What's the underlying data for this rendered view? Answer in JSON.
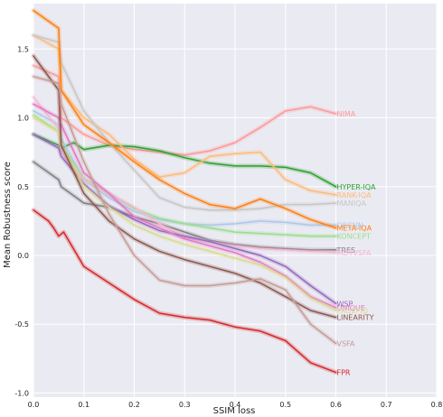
{
  "chart_data": {
    "type": "line",
    "xlabel": "SSIM loss",
    "ylabel": "Mean Robustness score",
    "xlim": [
      0.0,
      0.8
    ],
    "ylim": [
      -1.03,
      1.83
    ],
    "xticks": [
      0.0,
      0.1,
      0.2,
      0.3,
      0.4,
      0.5,
      0.6,
      0.7,
      0.8
    ],
    "xtick_labels": [
      "0.0",
      "0.1",
      "0.2",
      "0.3",
      "0.4",
      "0.5",
      "0.6",
      "0.7",
      "0.8"
    ],
    "yticks": [
      1.5,
      1.0,
      0.5,
      0.0,
      -0.5,
      -1.0
    ],
    "ytick_labels": [
      "1.5",
      "1.0",
      "0.5",
      "0.0",
      "-0.5",
      "-1.0"
    ],
    "grid": true,
    "background": "#EAEAF2",
    "legend": "labels at line ends",
    "series": [
      {
        "name": "NIMA",
        "color": "#FF9896",
        "x": [
          0,
          0.05,
          0.055,
          0.1,
          0.15,
          0.2,
          0.25,
          0.3,
          0.35,
          0.4,
          0.45,
          0.5,
          0.55,
          0.6
        ],
        "y": [
          1.38,
          1.3,
          1.0,
          0.88,
          0.8,
          0.77,
          0.75,
          0.73,
          0.76,
          0.82,
          0.93,
          1.05,
          1.08,
          1.03
        ]
      },
      {
        "name": "HYPER-IQA",
        "color": "#2CA02C",
        "x": [
          0,
          0.05,
          0.055,
          0.08,
          0.1,
          0.15,
          0.2,
          0.25,
          0.3,
          0.35,
          0.4,
          0.45,
          0.5,
          0.55,
          0.6
        ],
        "y": [
          0.88,
          0.8,
          0.78,
          0.82,
          0.77,
          0.8,
          0.79,
          0.76,
          0.71,
          0.67,
          0.65,
          0.65,
          0.64,
          0.6,
          0.5
        ]
      },
      {
        "name": "RANK-IQA",
        "color": "#FFBB78",
        "x": [
          0,
          0.05,
          0.055,
          0.1,
          0.15,
          0.2,
          0.25,
          0.3,
          0.35,
          0.4,
          0.45,
          0.5,
          0.55,
          0.6
        ],
        "y": [
          1.6,
          1.5,
          1.2,
          1.0,
          0.88,
          0.7,
          0.57,
          0.6,
          0.72,
          0.74,
          0.75,
          0.55,
          0.47,
          0.44
        ]
      },
      {
        "name": "MANIQA",
        "color": "#C7C7C7",
        "x": [
          0,
          0.05,
          0.055,
          0.1,
          0.15,
          0.2,
          0.25,
          0.3,
          0.35,
          0.4,
          0.45,
          0.5,
          0.55,
          0.6
        ],
        "y": [
          1.6,
          1.55,
          1.4,
          1.05,
          0.82,
          0.62,
          0.42,
          0.35,
          0.33,
          0.33,
          0.34,
          0.37,
          0.37,
          0.38
        ]
      },
      {
        "name": "DBCNN",
        "color": "#AEC7E8",
        "x": [
          0,
          0.05,
          0.055,
          0.1,
          0.15,
          0.2,
          0.25,
          0.3,
          0.35,
          0.4,
          0.45,
          0.5,
          0.55,
          0.6
        ],
        "y": [
          1.05,
          0.95,
          0.85,
          0.55,
          0.42,
          0.32,
          0.26,
          0.23,
          0.22,
          0.23,
          0.25,
          0.24,
          0.22,
          0.22
        ]
      },
      {
        "name": "META-IQA",
        "color": "#FF7F0E",
        "x": [
          0,
          0.05,
          0.055,
          0.1,
          0.15,
          0.2,
          0.25,
          0.3,
          0.35,
          0.4,
          0.45,
          0.5,
          0.55,
          0.6
        ],
        "y": [
          1.78,
          1.65,
          1.2,
          0.95,
          0.82,
          0.68,
          0.55,
          0.45,
          0.37,
          0.34,
          0.41,
          0.34,
          0.26,
          0.2
        ]
      },
      {
        "name": "KONCEPT",
        "color": "#98DF8A",
        "x": [
          0,
          0.05,
          0.055,
          0.1,
          0.15,
          0.2,
          0.25,
          0.3,
          0.35,
          0.4,
          0.45,
          0.5,
          0.55,
          0.6
        ],
        "y": [
          1.02,
          0.9,
          0.8,
          0.56,
          0.45,
          0.34,
          0.27,
          0.23,
          0.2,
          0.17,
          0.16,
          0.15,
          0.14,
          0.14
        ]
      },
      {
        "name": "TRES",
        "color": "#7F7F7F",
        "x": [
          0,
          0.05,
          0.055,
          0.1,
          0.15,
          0.2,
          0.25,
          0.3,
          0.35,
          0.4,
          0.45,
          0.5,
          0.55,
          0.6
        ],
        "y": [
          0.68,
          0.55,
          0.5,
          0.38,
          0.35,
          0.28,
          0.23,
          0.17,
          0.11,
          0.08,
          0.06,
          0.05,
          0.04,
          0.04
        ]
      },
      {
        "name": "MDTVSFA",
        "color": "#F7B6D2",
        "x": [
          0,
          0.05,
          0.055,
          0.1,
          0.15,
          0.2,
          0.25,
          0.3,
          0.35,
          0.4,
          0.45,
          0.5,
          0.55,
          0.6
        ],
        "y": [
          1.15,
          0.92,
          0.75,
          0.55,
          0.45,
          0.35,
          0.23,
          0.13,
          0.1,
          0.07,
          0.05,
          0.04,
          0.03,
          0.02
        ]
      },
      {
        "name": "WSP",
        "color": "#9467BD",
        "x": [
          0,
          0.05,
          0.055,
          0.1,
          0.15,
          0.2,
          0.25,
          0.3,
          0.35,
          0.4,
          0.45,
          0.5,
          0.55,
          0.6
        ],
        "y": [
          0.88,
          0.78,
          0.72,
          0.52,
          0.36,
          0.26,
          0.18,
          0.14,
          0.1,
          0.05,
          0.0,
          -0.08,
          -0.22,
          -0.35
        ]
      },
      {
        "name": "UNIQUE",
        "color": "#E377C2",
        "x": [
          0,
          0.05,
          0.055,
          0.1,
          0.15,
          0.2,
          0.25,
          0.3,
          0.35,
          0.4,
          0.45,
          0.5,
          0.55,
          0.6
        ],
        "y": [
          1.1,
          1.0,
          0.95,
          0.6,
          0.45,
          0.28,
          0.2,
          0.12,
          0.07,
          0.02,
          -0.05,
          -0.15,
          -0.3,
          -0.38
        ]
      },
      {
        "name": "PAQ2PIQ",
        "color": "#DBDB8D",
        "x": [
          0,
          0.05,
          0.055,
          0.1,
          0.15,
          0.2,
          0.25,
          0.3,
          0.35,
          0.4,
          0.45,
          0.5,
          0.55,
          0.6
        ],
        "y": [
          1.0,
          0.9,
          0.8,
          0.5,
          0.35,
          0.22,
          0.14,
          0.08,
          0.03,
          -0.02,
          -0.07,
          -0.16,
          -0.31,
          -0.4
        ]
      },
      {
        "name": "LINEARITY",
        "color": "#8C564B",
        "x": [
          0,
          0.05,
          0.055,
          0.1,
          0.15,
          0.2,
          0.25,
          0.3,
          0.35,
          0.4,
          0.45,
          0.5,
          0.55,
          0.6
        ],
        "y": [
          1.45,
          1.2,
          0.8,
          0.45,
          0.25,
          0.12,
          0.03,
          -0.03,
          -0.08,
          -0.13,
          -0.2,
          -0.3,
          -0.4,
          -0.45
        ]
      },
      {
        "name": "VSFA",
        "color": "#C49C94",
        "x": [
          0,
          0.05,
          0.055,
          0.1,
          0.15,
          0.2,
          0.25,
          0.3,
          0.35,
          0.4,
          0.45,
          0.5,
          0.55,
          0.6
        ],
        "y": [
          1.3,
          1.25,
          1.1,
          0.68,
          0.3,
          0.0,
          -0.18,
          -0.22,
          -0.22,
          -0.2,
          -0.17,
          -0.25,
          -0.5,
          -0.64
        ]
      },
      {
        "name": "FPR",
        "color": "#D62728",
        "x": [
          0,
          0.03,
          0.04,
          0.05,
          0.06,
          0.1,
          0.15,
          0.2,
          0.25,
          0.3,
          0.35,
          0.4,
          0.45,
          0.5,
          0.55,
          0.6
        ],
        "y": [
          0.33,
          0.25,
          0.2,
          0.14,
          0.17,
          -0.08,
          -0.2,
          -0.32,
          -0.42,
          -0.45,
          -0.47,
          -0.52,
          -0.55,
          -0.62,
          -0.78,
          -0.85
        ]
      }
    ]
  }
}
